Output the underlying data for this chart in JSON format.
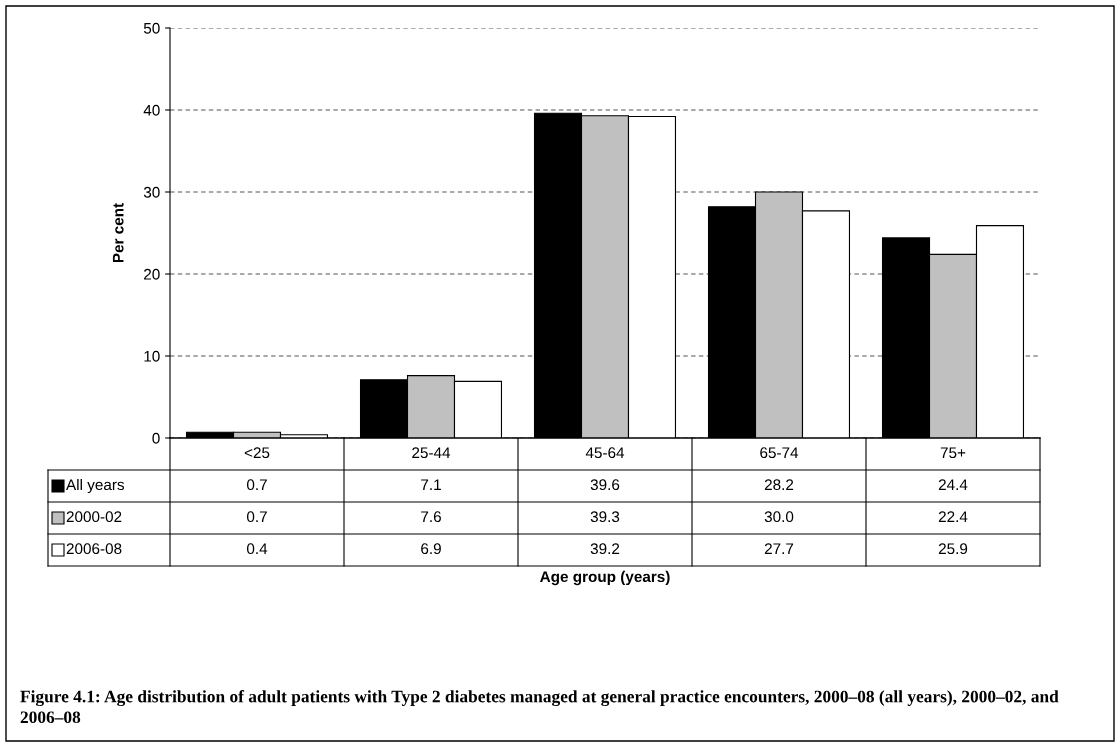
{
  "chart_data": {
    "type": "bar",
    "title": "Figure 4.1: Age distribution of adult patients with Type 2 diabetes managed at general practice encounters, 2000–08 (all years), 2000–02, and 2006–08",
    "annotations": [
      "Age group (years)"
    ],
    "ylabel": "Per cent",
    "categories": [
      "<25",
      "25-44",
      "45-64",
      "65-74",
      "75+"
    ],
    "series": [
      {
        "name": "All years",
        "color": "#000000",
        "values": [
          0.7,
          7.1,
          39.6,
          28.2,
          24.4
        ],
        "value_labels": [
          "0.7",
          "7.1",
          "39.6",
          "28.2",
          "24.4"
        ]
      },
      {
        "name": "2000-02",
        "color": "#c0c0c0",
        "values": [
          0.7,
          7.6,
          39.3,
          30.0,
          22.4
        ],
        "value_labels": [
          "0.7",
          "7.6",
          "39.3",
          "30.0",
          "22.4"
        ]
      },
      {
        "name": "2006-08",
        "color": "#ffffff",
        "values": [
          0.4,
          6.9,
          39.2,
          27.7,
          25.9
        ],
        "value_labels": [
          "0.4",
          "6.9",
          "39.2",
          "27.7",
          "25.9"
        ]
      }
    ],
    "ylim": [
      0,
      50
    ],
    "yticks": [
      0,
      10,
      20,
      30,
      40,
      50
    ],
    "grid": "y",
    "legend": "bottom"
  }
}
